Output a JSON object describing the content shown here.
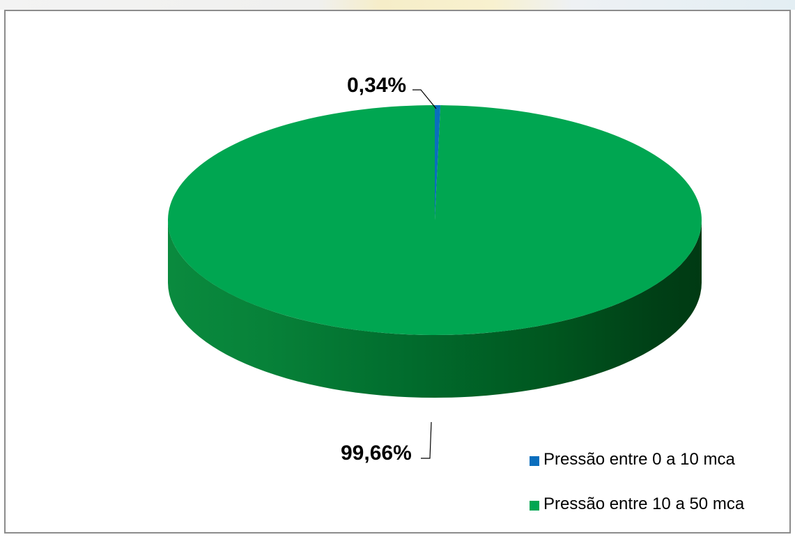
{
  "chart_data": {
    "type": "pie",
    "style": "3d",
    "categories": [
      "Pressão entre 0 a 10 mca",
      "Pressão entre 10 a 50 mca"
    ],
    "values": [
      0.34,
      99.66
    ],
    "data_labels": [
      "0,34%",
      "99,66%"
    ],
    "colors": [
      "#0a6ebd",
      "#00a651"
    ],
    "legend_position": "bottom-right",
    "title": ""
  }
}
